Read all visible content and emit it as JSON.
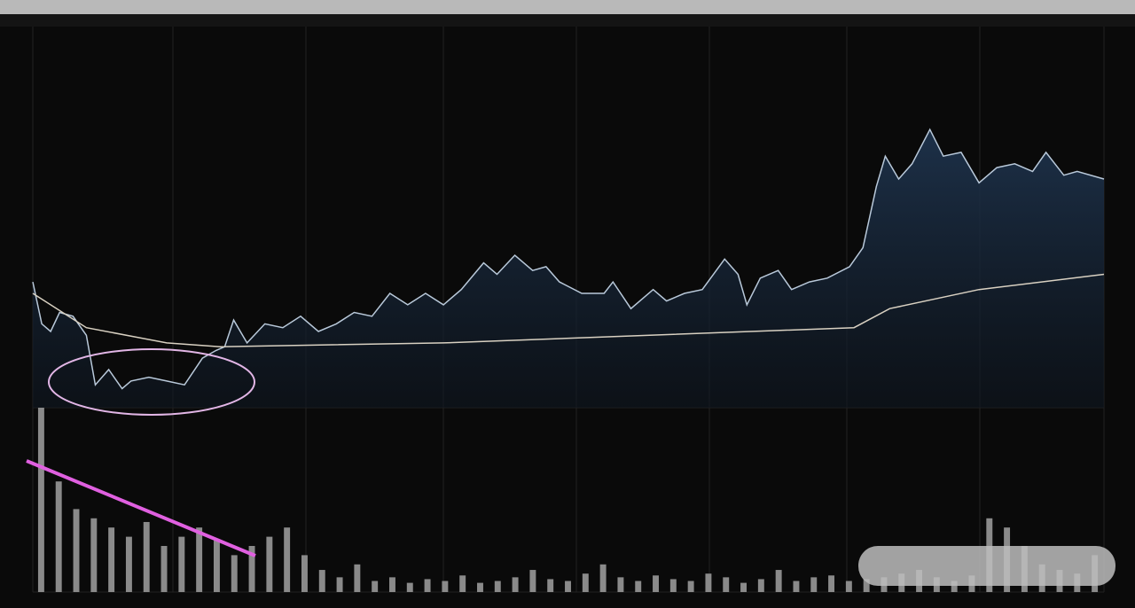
{
  "chart_data": {
    "type": "line",
    "xlim": [
      0,
      240
    ],
    "ylim": [
      0,
      100
    ],
    "series": [
      {
        "color": "#b9c9da",
        "x": [
          0,
          2,
          4,
          6,
          9,
          12,
          14,
          17,
          20,
          22,
          26,
          30,
          34,
          38,
          41,
          43,
          45,
          48,
          52,
          56,
          60,
          64,
          68,
          72,
          76,
          80,
          84,
          88,
          92,
          96,
          101,
          104,
          108,
          112,
          115,
          118,
          123,
          128,
          130,
          134,
          139,
          142,
          146,
          150,
          155,
          158,
          160,
          163,
          167,
          170,
          174,
          178,
          183,
          186,
          189,
          191,
          194,
          197,
          201,
          204,
          208,
          212,
          216,
          220,
          224,
          227,
          231,
          234,
          240
        ],
        "values": [
          33,
          22,
          20,
          25,
          24,
          19,
          6,
          10,
          5,
          7,
          8,
          7,
          6,
          13,
          15,
          16,
          23,
          17,
          22,
          21,
          24,
          20,
          22,
          25,
          24,
          30,
          27,
          30,
          27,
          31,
          38,
          35,
          40,
          36,
          37,
          33,
          30,
          30,
          33,
          26,
          31,
          28,
          30,
          31,
          39,
          35,
          27,
          34,
          36,
          31,
          33,
          34,
          37,
          42,
          58,
          66,
          60,
          64,
          73,
          66,
          67,
          59,
          63,
          64,
          62,
          67,
          61,
          62,
          60
        ]
      },
      {
        "color": "#d9d1c2",
        "x": [
          0,
          12,
          30,
          42,
          92,
          184,
          192,
          212,
          240
        ],
        "values": [
          30,
          21,
          17,
          16,
          17,
          21,
          26,
          31,
          35
        ]
      }
    ],
    "volume": {
      "type": "bar",
      "color": "#8a8a8a",
      "ylim": [
        0,
        100
      ],
      "values": [
        100,
        60,
        45,
        40,
        35,
        30,
        38,
        25,
        30,
        35,
        28,
        20,
        25,
        30,
        35,
        20,
        12,
        8,
        15,
        6,
        8,
        5,
        7,
        6,
        9,
        5,
        6,
        8,
        12,
        7,
        6,
        10,
        15,
        8,
        6,
        9,
        7,
        6,
        10,
        8,
        5,
        7,
        12,
        6,
        8,
        9,
        6,
        7,
        8,
        10,
        12,
        8,
        6,
        9,
        40,
        35,
        25,
        15,
        12,
        10,
        20
      ]
    }
  }
}
